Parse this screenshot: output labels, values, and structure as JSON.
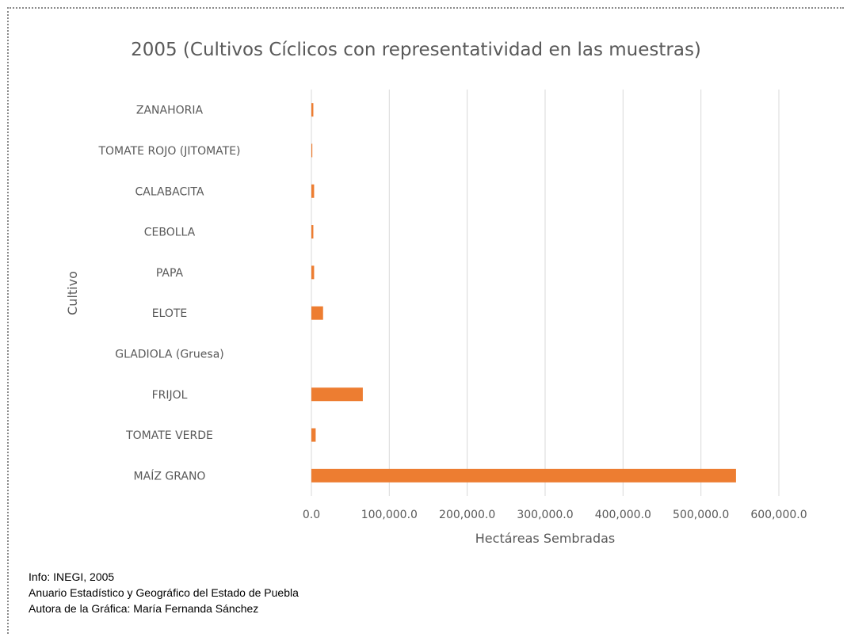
{
  "chart_data": {
    "type": "bar",
    "orientation": "horizontal",
    "title": "2005 (Cultivos Cíclicos con representatividad en las muestras)",
    "xlabel": "Hectáreas Sembradas",
    "ylabel": "Cultivo",
    "categories": [
      "ZANAHORIA",
      "TOMATE ROJO (JITOMATE)",
      "CALABACITA",
      "CEBOLLA",
      "PAPA",
      "ELOTE",
      "GLADIOLA (Gruesa)",
      "FRIJOL",
      "TOMATE VERDE",
      "MAÍZ GRANO"
    ],
    "values": [
      2500,
      1200,
      3500,
      2500,
      3500,
      15000,
      0,
      66000,
      5500,
      545000
    ],
    "xlim": [
      0,
      600000
    ],
    "xticks": [
      0,
      100000,
      200000,
      300000,
      400000,
      500000,
      600000
    ],
    "xtick_labels": [
      "0.0",
      "100,000.0",
      "200,000.0",
      "300,000.0",
      "400,000.0",
      "500,000.0",
      "600,000.0"
    ],
    "grid": "vertical",
    "legend": "none",
    "bar_color": "#ED7D31",
    "grid_color": "#D9D9D9"
  },
  "footnotes": {
    "line1": "Info: INEGI, 2005",
    "line2": "Anuario Estadístico y Geográfico del Estado de Puebla",
    "line3": "Autora de la Gráfica: María Fernanda Sánchez"
  }
}
